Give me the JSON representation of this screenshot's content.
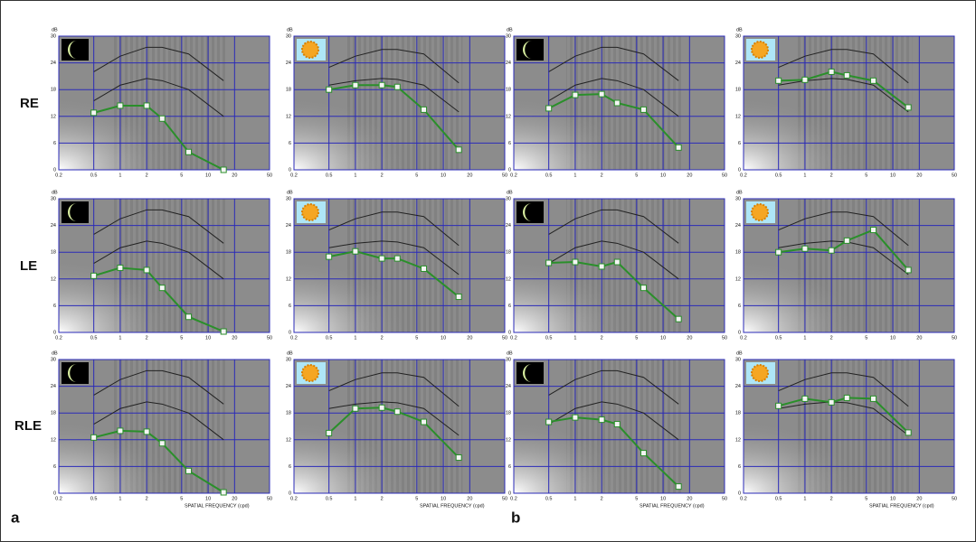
{
  "row_labels": [
    "RE",
    "LE",
    "RLE"
  ],
  "panel_labels": [
    "a",
    "b"
  ],
  "chart_data": [
    {
      "type": "line",
      "icon": "moon",
      "ylabel": "dB",
      "xscale": "log",
      "grid": true,
      "x": [
        0.5,
        1,
        2,
        3,
        6,
        15
      ],
      "xlim": [
        0.2,
        50
      ],
      "xticks": [
        0.2,
        0.5,
        1,
        2,
        5,
        10,
        20,
        50
      ],
      "ylim": [
        0,
        30
      ],
      "yticks": [
        0,
        6,
        12,
        18,
        24,
        30
      ],
      "series": [
        {
          "color": "#222222",
          "values": [
            22,
            25.5,
            27.5,
            27.5,
            26,
            20
          ]
        },
        {
          "color": "#222222",
          "values": [
            15.5,
            19,
            20.5,
            20,
            18,
            12
          ]
        },
        {
          "color": "#2a8f2a",
          "values": [
            12.8,
            14.4,
            14.4,
            11.5,
            4,
            0
          ]
        }
      ]
    },
    {
      "type": "line",
      "icon": "sun",
      "ylabel": "dB",
      "xscale": "log",
      "grid": true,
      "x": [
        0.5,
        1,
        2,
        3,
        6,
        15
      ],
      "xlim": [
        0.2,
        50
      ],
      "xticks": [
        0.2,
        0.5,
        1,
        2,
        5,
        10,
        20,
        50
      ],
      "ylim": [
        0,
        30
      ],
      "yticks": [
        0,
        6,
        12,
        18,
        24,
        30
      ],
      "series": [
        {
          "color": "#222222",
          "values": [
            23,
            25.5,
            27,
            27,
            26,
            19.5
          ]
        },
        {
          "color": "#222222",
          "values": [
            19,
            20,
            20.5,
            20.3,
            19,
            13
          ]
        },
        {
          "color": "#2a8f2a",
          "values": [
            18,
            19,
            19,
            18.6,
            13.5,
            4.5
          ]
        }
      ]
    },
    {
      "type": "line",
      "icon": "moon",
      "ylabel": "dB",
      "xscale": "log",
      "grid": true,
      "x": [
        0.5,
        1,
        2,
        3,
        6,
        15
      ],
      "xlim": [
        0.2,
        50
      ],
      "xticks": [
        0.2,
        0.5,
        1,
        2,
        5,
        10,
        20,
        50
      ],
      "ylim": [
        0,
        30
      ],
      "yticks": [
        0,
        6,
        12,
        18,
        24,
        30
      ],
      "series": [
        {
          "color": "#222222",
          "values": [
            22,
            25.5,
            27.5,
            27.5,
            26,
            20
          ]
        },
        {
          "color": "#222222",
          "values": [
            15.5,
            19,
            20.5,
            20,
            18,
            12
          ]
        },
        {
          "color": "#2a8f2a",
          "values": [
            13.8,
            16.8,
            17,
            15,
            13.5,
            5
          ]
        }
      ]
    },
    {
      "type": "line",
      "icon": "sun",
      "ylabel": "dB",
      "xscale": "log",
      "grid": true,
      "x": [
        0.5,
        1,
        2,
        3,
        6,
        15
      ],
      "xlim": [
        0.2,
        50
      ],
      "xticks": [
        0.2,
        0.5,
        1,
        2,
        5,
        10,
        20,
        50
      ],
      "ylim": [
        0,
        30
      ],
      "yticks": [
        0,
        6,
        12,
        18,
        24,
        30
      ],
      "series": [
        {
          "color": "#222222",
          "values": [
            23,
            25.5,
            27,
            27,
            26,
            19.5
          ]
        },
        {
          "color": "#222222",
          "values": [
            19,
            20,
            20.5,
            20.3,
            19,
            13
          ]
        },
        {
          "color": "#2a8f2a",
          "values": [
            20,
            20.2,
            22,
            21.2,
            20,
            14
          ]
        }
      ]
    },
    {
      "type": "line",
      "icon": "moon",
      "ylabel": "dB",
      "xscale": "log",
      "grid": true,
      "x": [
        0.5,
        1,
        2,
        3,
        6,
        15
      ],
      "xlim": [
        0.2,
        50
      ],
      "xticks": [
        0.2,
        0.5,
        1,
        2,
        5,
        10,
        20,
        50
      ],
      "ylim": [
        0,
        30
      ],
      "yticks": [
        0,
        6,
        12,
        18,
        24,
        30
      ],
      "series": [
        {
          "color": "#222222",
          "values": [
            22,
            25.5,
            27.5,
            27.5,
            26,
            20
          ]
        },
        {
          "color": "#222222",
          "values": [
            15.5,
            19,
            20.5,
            20,
            18,
            12
          ]
        },
        {
          "color": "#2a8f2a",
          "values": [
            12.7,
            14.5,
            14,
            10,
            3.5,
            0.2
          ]
        }
      ]
    },
    {
      "type": "line",
      "icon": "sun",
      "ylabel": "dB",
      "xscale": "log",
      "grid": true,
      "x": [
        0.5,
        1,
        2,
        3,
        6,
        15
      ],
      "xlim": [
        0.2,
        50
      ],
      "xticks": [
        0.2,
        0.5,
        1,
        2,
        5,
        10,
        20,
        50
      ],
      "ylim": [
        0,
        30
      ],
      "yticks": [
        0,
        6,
        12,
        18,
        24,
        30
      ],
      "series": [
        {
          "color": "#222222",
          "values": [
            23,
            25.5,
            27,
            27,
            26,
            19.5
          ]
        },
        {
          "color": "#222222",
          "values": [
            19,
            20,
            20.5,
            20.3,
            19,
            13
          ]
        },
        {
          "color": "#2a8f2a",
          "values": [
            17,
            18.2,
            16.6,
            16.6,
            14.3,
            8
          ]
        }
      ]
    },
    {
      "type": "line",
      "icon": "moon",
      "ylabel": "dB",
      "xscale": "log",
      "grid": true,
      "x": [
        0.5,
        1,
        2,
        3,
        6,
        15
      ],
      "xlim": [
        0.2,
        50
      ],
      "xticks": [
        0.2,
        0.5,
        1,
        2,
        5,
        10,
        20,
        50
      ],
      "ylim": [
        0,
        30
      ],
      "yticks": [
        0,
        6,
        12,
        18,
        24,
        30
      ],
      "series": [
        {
          "color": "#222222",
          "values": [
            22,
            25.5,
            27.5,
            27.5,
            26,
            20
          ]
        },
        {
          "color": "#222222",
          "values": [
            15.5,
            19,
            20.5,
            20,
            18,
            12
          ]
        },
        {
          "color": "#2a8f2a",
          "values": [
            15.6,
            15.8,
            14.8,
            15.8,
            10,
            3
          ]
        }
      ]
    },
    {
      "type": "line",
      "icon": "sun",
      "ylabel": "dB",
      "xscale": "log",
      "grid": true,
      "x": [
        0.5,
        1,
        2,
        3,
        6,
        15
      ],
      "xlim": [
        0.2,
        50
      ],
      "xticks": [
        0.2,
        0.5,
        1,
        2,
        5,
        10,
        20,
        50
      ],
      "ylim": [
        0,
        30
      ],
      "yticks": [
        0,
        6,
        12,
        18,
        24,
        30
      ],
      "series": [
        {
          "color": "#222222",
          "values": [
            23,
            25.5,
            27,
            27,
            26,
            19.5
          ]
        },
        {
          "color": "#222222",
          "values": [
            19,
            20,
            20.5,
            20.3,
            19,
            13
          ]
        },
        {
          "color": "#2a8f2a",
          "values": [
            18,
            18.8,
            18.4,
            20.6,
            23,
            14
          ]
        }
      ]
    },
    {
      "type": "line",
      "icon": "moon",
      "ylabel": "dB",
      "xlabel": "SPATIAL FREQUENCY (cpd)",
      "xscale": "log",
      "grid": true,
      "x": [
        0.5,
        1,
        2,
        3,
        6,
        15
      ],
      "xlim": [
        0.2,
        50
      ],
      "xticks": [
        0.2,
        0.5,
        1,
        2,
        5,
        10,
        20,
        50
      ],
      "ylim": [
        0,
        30
      ],
      "yticks": [
        0,
        6,
        12,
        18,
        24,
        30
      ],
      "series": [
        {
          "color": "#222222",
          "values": [
            22,
            25.5,
            27.5,
            27.5,
            26,
            20
          ]
        },
        {
          "color": "#222222",
          "values": [
            15.5,
            19,
            20.5,
            20,
            18,
            12
          ]
        },
        {
          "color": "#2a8f2a",
          "values": [
            12.5,
            14,
            13.8,
            11.2,
            5,
            0.2
          ]
        }
      ]
    },
    {
      "type": "line",
      "icon": "sun",
      "ylabel": "dB",
      "xlabel": "SPATIAL FREQUENCY (cpd)",
      "xscale": "log",
      "grid": true,
      "x": [
        0.5,
        1,
        2,
        3,
        6,
        15
      ],
      "xlim": [
        0.2,
        50
      ],
      "xticks": [
        0.2,
        0.5,
        1,
        2,
        5,
        10,
        20,
        50
      ],
      "ylim": [
        0,
        30
      ],
      "yticks": [
        0,
        6,
        12,
        18,
        24,
        30
      ],
      "series": [
        {
          "color": "#222222",
          "values": [
            23,
            25.5,
            27,
            27,
            26,
            19.5
          ]
        },
        {
          "color": "#222222",
          "values": [
            19,
            20,
            20.5,
            20.3,
            19,
            13
          ]
        },
        {
          "color": "#2a8f2a",
          "values": [
            13.5,
            19,
            19.2,
            18.3,
            16,
            8
          ]
        }
      ]
    },
    {
      "type": "line",
      "icon": "moon",
      "ylabel": "dB",
      "xlabel": "SPATIAL FREQUENCY (cpd)",
      "xscale": "log",
      "grid": true,
      "x": [
        0.5,
        1,
        2,
        3,
        6,
        15
      ],
      "xlim": [
        0.2,
        50
      ],
      "xticks": [
        0.2,
        0.5,
        1,
        2,
        5,
        10,
        20,
        50
      ],
      "ylim": [
        0,
        30
      ],
      "yticks": [
        0,
        6,
        12,
        18,
        24,
        30
      ],
      "series": [
        {
          "color": "#222222",
          "values": [
            22,
            25.5,
            27.5,
            27.5,
            26,
            20
          ]
        },
        {
          "color": "#222222",
          "values": [
            15.5,
            19,
            20.5,
            20,
            18,
            12
          ]
        },
        {
          "color": "#2a8f2a",
          "values": [
            16,
            17,
            16.5,
            15.5,
            9,
            1.5
          ]
        }
      ]
    },
    {
      "type": "line",
      "icon": "sun",
      "ylabel": "dB",
      "xlabel": "SPATIAL FREQUENCY (cpd)",
      "xscale": "log",
      "grid": true,
      "x": [
        0.5,
        1,
        2,
        3,
        6,
        15
      ],
      "xlim": [
        0.2,
        50
      ],
      "xticks": [
        0.2,
        0.5,
        1,
        2,
        5,
        10,
        20,
        50
      ],
      "ylim": [
        0,
        30
      ],
      "yticks": [
        0,
        6,
        12,
        18,
        24,
        30
      ],
      "series": [
        {
          "color": "#222222",
          "values": [
            23,
            25.5,
            27,
            27,
            26,
            19.5
          ]
        },
        {
          "color": "#222222",
          "values": [
            19,
            20,
            20.5,
            20.3,
            19,
            13
          ]
        },
        {
          "color": "#2a8f2a",
          "values": [
            19.6,
            21.2,
            20.4,
            21.4,
            21.2,
            13.6
          ]
        }
      ]
    }
  ]
}
